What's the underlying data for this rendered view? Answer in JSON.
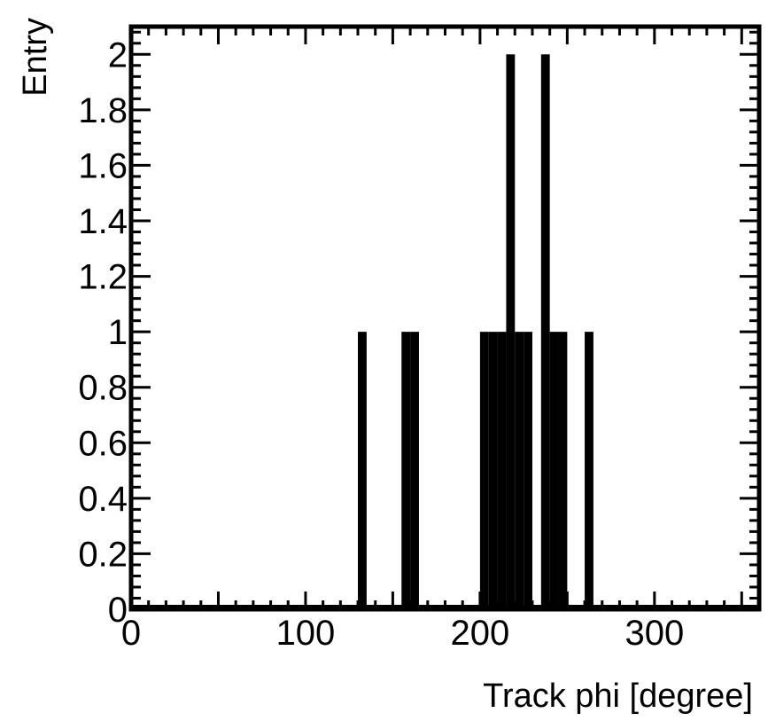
{
  "chart_data": {
    "type": "bar",
    "xlabel": "Track phi [degree]",
    "ylabel": "Entry",
    "xlim": [
      0,
      360
    ],
    "ylim": [
      0,
      2.1
    ],
    "bin_width": 5,
    "x_ticks": [
      0,
      100,
      200,
      300
    ],
    "x_tick_labels": [
      "0",
      "100",
      "200",
      "300"
    ],
    "y_ticks": [
      0,
      0.2,
      0.4,
      0.6,
      0.8,
      1,
      1.2,
      1.4,
      1.6,
      1.8,
      2
    ],
    "y_tick_labels": [
      "0",
      "0.2",
      "0.4",
      "0.6",
      "0.8",
      "1",
      "1.2",
      "1.4",
      "1.6",
      "1.8",
      "2"
    ],
    "bins": [
      {
        "x0": 130,
        "x1": 135,
        "value": 1
      },
      {
        "x0": 155,
        "x1": 160,
        "value": 1
      },
      {
        "x0": 160,
        "x1": 165,
        "value": 1
      },
      {
        "x0": 200,
        "x1": 205,
        "value": 1
      },
      {
        "x0": 205,
        "x1": 210,
        "value": 1
      },
      {
        "x0": 210,
        "x1": 215,
        "value": 1
      },
      {
        "x0": 215,
        "x1": 220,
        "value": 2
      },
      {
        "x0": 220,
        "x1": 225,
        "value": 1
      },
      {
        "x0": 225,
        "x1": 230,
        "value": 1
      },
      {
        "x0": 235,
        "x1": 240,
        "value": 2
      },
      {
        "x0": 240,
        "x1": 245,
        "value": 1
      },
      {
        "x0": 245,
        "x1": 250,
        "value": 1
      },
      {
        "x0": 260,
        "x1": 265,
        "value": 1
      }
    ],
    "grid": false,
    "legend": "none",
    "colors": {
      "bar": "#000000",
      "axis": "#000000",
      "background": "#ffffff"
    }
  }
}
